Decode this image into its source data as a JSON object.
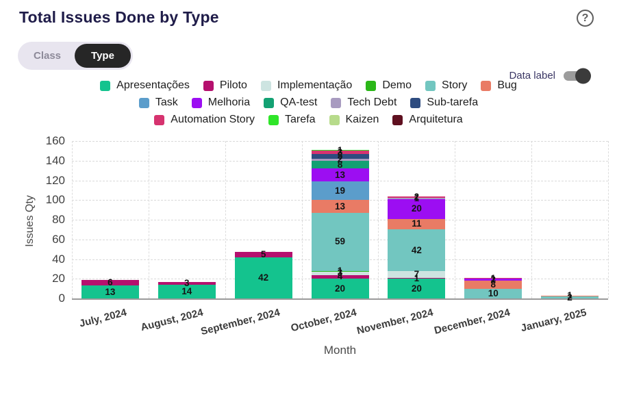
{
  "header": {
    "title": "Total Issues Done by Type",
    "help_char": "?"
  },
  "toggles": {
    "class_label": "Class",
    "type_label": "Type",
    "selected": "Type",
    "data_label_text": "Data label",
    "data_label_on": true
  },
  "colors": {
    "title_text": "#1f1c49",
    "toggle_track": "#e8e5ef",
    "toggle_selected": "#262626",
    "switch_track": "#9c9c9c",
    "switch_knob": "#3b3b3b"
  },
  "chart_data": {
    "type": "bar",
    "stacked": true,
    "title": "Total Issues Done by Type",
    "xlabel": "Month",
    "ylabel": "Issues Qty",
    "ylim": [
      0,
      160
    ],
    "ytick_step": 20,
    "grid": true,
    "legend_position": "top",
    "categories": [
      "July, 2024",
      "August, 2024",
      "September, 2024",
      "October, 2024",
      "November, 2024",
      "December, 2024",
      "January, 2025"
    ],
    "series": [
      {
        "name": "Apresentações",
        "color": "#14c38e",
        "values": [
          13,
          14,
          42,
          20,
          20,
          0,
          0
        ]
      },
      {
        "name": "Piloto",
        "color": "#b5106e",
        "values": [
          6,
          3,
          5,
          4,
          1,
          0,
          0
        ]
      },
      {
        "name": "Implementação",
        "color": "#cde4e1",
        "values": [
          0,
          0,
          0,
          3,
          7,
          0,
          0
        ]
      },
      {
        "name": "Demo",
        "color": "#2bb718",
        "values": [
          0,
          0,
          0,
          1,
          0,
          0,
          0
        ]
      },
      {
        "name": "Story",
        "color": "#72c6c0",
        "values": [
          0,
          0,
          0,
          59,
          42,
          10,
          2
        ]
      },
      {
        "name": "Bug",
        "color": "#e97b65",
        "values": [
          0,
          0,
          0,
          13,
          11,
          8,
          1
        ]
      },
      {
        "name": "Task",
        "color": "#5b9dcb",
        "values": [
          0,
          0,
          0,
          19,
          0,
          0,
          0
        ]
      },
      {
        "name": "Melhoria",
        "color": "#9c0ef2",
        "values": [
          0,
          0,
          0,
          13,
          20,
          2,
          0
        ]
      },
      {
        "name": "QA-test",
        "color": "#13a173",
        "values": [
          0,
          0,
          0,
          8,
          0,
          0,
          0
        ]
      },
      {
        "name": "Tech Debt",
        "color": "#a89bc0",
        "values": [
          0,
          0,
          0,
          2,
          1,
          0,
          0
        ]
      },
      {
        "name": "Sub-tarefa",
        "color": "#2e4c80",
        "values": [
          0,
          0,
          0,
          5,
          0,
          0,
          0
        ]
      },
      {
        "name": "Automation Story",
        "color": "#d6336f",
        "values": [
          0,
          0,
          0,
          3,
          2,
          1,
          0
        ]
      },
      {
        "name": "Tarefa",
        "color": "#2fe529",
        "values": [
          0,
          0,
          0,
          1,
          0,
          0,
          0
        ]
      },
      {
        "name": "Kaizen",
        "color": "#b7db8b",
        "values": [
          0,
          0,
          0,
          0,
          0,
          0,
          0
        ]
      },
      {
        "name": "Arquitetura",
        "color": "#5f1020",
        "values": [
          0,
          0,
          0,
          0,
          0,
          0,
          0
        ]
      }
    ],
    "legend_rows": [
      [
        0,
        1,
        2,
        3,
        4,
        5
      ],
      [
        6,
        7,
        8,
        9,
        10
      ],
      [
        11,
        12,
        13,
        14
      ]
    ]
  }
}
